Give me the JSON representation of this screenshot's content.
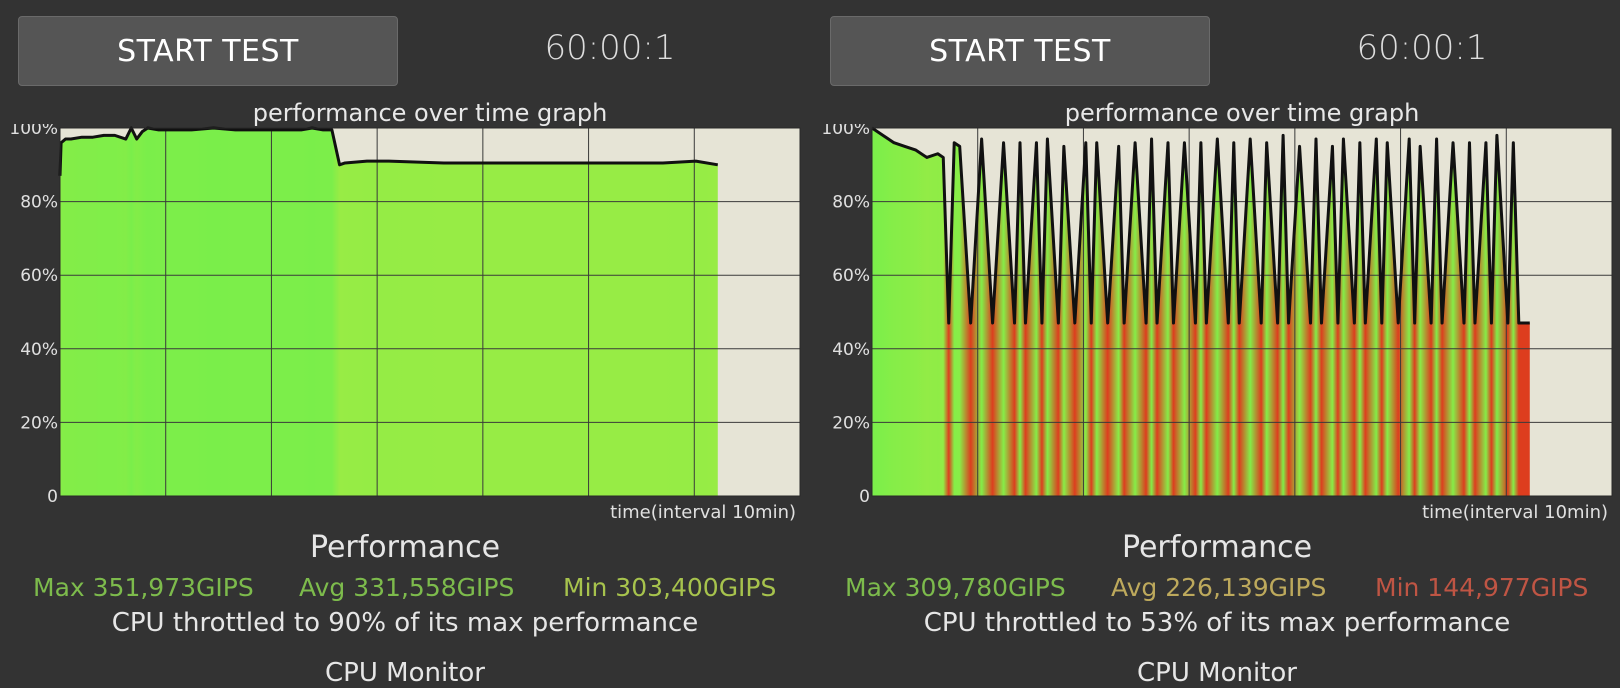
{
  "panels": [
    {
      "start_button": "START TEST",
      "timer": "60:00:1",
      "graph_title": "performance over time graph",
      "x_axis_caption": "time(interval 10min)",
      "performance_title": "Performance",
      "stats": {
        "max": {
          "text": "Max 351,973GIPS",
          "color": "#7dbb4c"
        },
        "avg": {
          "text": "Avg 331,558GIPS",
          "color": "#7dbb4c"
        },
        "min": {
          "text": "Min 303,400GIPS",
          "color": "#a7c34d"
        }
      },
      "throttle_text": "CPU throttled to 90% of its max performance",
      "next_section": "CPU Monitor",
      "chart_data": {
        "type": "line",
        "title": "performance over time graph",
        "xlabel": "time(interval 10min)",
        "ylabel": "",
        "y_ticks": [
          "0",
          "20%",
          "40%",
          "60%",
          "80%",
          "100%"
        ],
        "ylim": [
          0,
          100
        ],
        "xlim": [
          0,
          67.5
        ],
        "grid": true,
        "x": [
          0,
          0.1,
          0.5,
          1,
          2,
          3,
          4,
          5,
          6,
          6.5,
          7,
          7.5,
          8,
          9,
          10,
          11,
          12,
          14,
          16,
          18,
          20,
          22,
          23,
          24,
          24.8,
          25.5,
          26,
          28,
          30,
          35,
          40,
          45,
          50,
          55,
          58,
          60
        ],
        "values": [
          87,
          96,
          97,
          97,
          97.5,
          97.5,
          98,
          98,
          97,
          100,
          97,
          99,
          100,
          99.5,
          99.5,
          99.5,
          99.5,
          100,
          99.5,
          99.5,
          99.5,
          99.5,
          100,
          99.5,
          99.5,
          90,
          90.5,
          91,
          91,
          90.5,
          90.5,
          90.5,
          90.5,
          90.5,
          91,
          90
        ]
      }
    },
    {
      "start_button": "START TEST",
      "timer": "60:00:1",
      "graph_title": "performance over time graph",
      "x_axis_caption": "time(interval 10min)",
      "performance_title": "Performance",
      "stats": {
        "max": {
          "text": "Max 309,780GIPS",
          "color": "#7dbb4c"
        },
        "avg": {
          "text": "Avg 226,139GIPS",
          "color": "#bda95c"
        },
        "min": {
          "text": "Min 144,977GIPS",
          "color": "#bf5544"
        }
      },
      "throttle_text": "CPU throttled to 53% of its max performance",
      "next_section": "CPU Monitor",
      "chart_data": {
        "type": "line",
        "title": "performance over time graph",
        "xlabel": "time(interval 10min)",
        "ylabel": "",
        "y_ticks": [
          "0",
          "20%",
          "40%",
          "60%",
          "80%",
          "100%"
        ],
        "ylim": [
          0,
          100
        ],
        "xlim": [
          0,
          67.5
        ],
        "grid": true,
        "x": [
          0,
          1,
          2,
          3,
          4,
          5,
          6,
          6.5,
          7,
          7.5,
          8,
          9,
          10,
          11,
          12,
          13,
          13.5,
          14,
          15,
          15.5,
          16,
          17,
          17.5,
          18.5,
          19.5,
          20,
          20.5,
          21.5,
          22.5,
          23,
          24,
          25,
          25.5,
          26,
          27,
          27.5,
          28.5,
          29.5,
          30,
          30.5,
          31.5,
          32.5,
          33,
          33.5,
          34.5,
          35.5,
          36,
          37,
          37.5,
          38,
          39,
          40,
          40.5,
          41,
          42,
          42.5,
          43,
          44,
          44.5,
          45,
          46,
          46.5,
          47,
          48,
          49,
          49.5,
          50,
          51,
          51.5,
          52,
          53,
          54,
          54.5,
          55,
          56,
          56.5,
          57,
          58,
          58.5,
          59,
          60
        ],
        "values": [
          100,
          98,
          96,
          95,
          94,
          92,
          93,
          92,
          47,
          96,
          95,
          47,
          97,
          47,
          96,
          47,
          96,
          47,
          96,
          47,
          97,
          47,
          95,
          47,
          96,
          47,
          96,
          47,
          95,
          47,
          96,
          47,
          97,
          47,
          96,
          47,
          96,
          47,
          96,
          47,
          97,
          47,
          96,
          47,
          97,
          47,
          96,
          47,
          98,
          47,
          95,
          47,
          97,
          47,
          95,
          47,
          97,
          47,
          96,
          47,
          97,
          47,
          96,
          47,
          97,
          47,
          95,
          47,
          97,
          47,
          96,
          47,
          96,
          47,
          96,
          47,
          98,
          47,
          96,
          47,
          47
        ]
      }
    }
  ]
}
